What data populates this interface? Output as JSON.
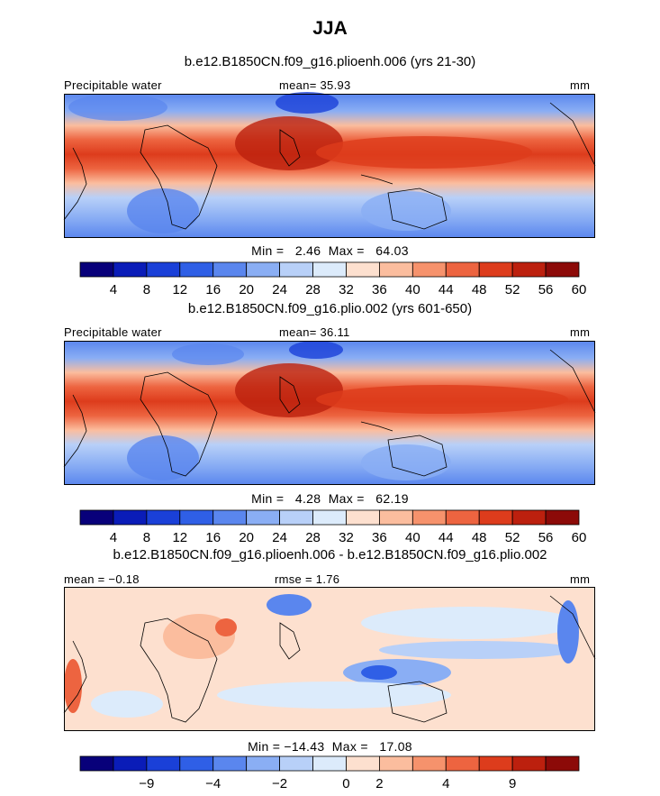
{
  "title": "JJA",
  "panels": [
    {
      "case_title": "b.e12.B1850CN.f09_g16.plioenh.006 (yrs 21-30)",
      "left_label": "Precipitable water",
      "center_label": "mean=  35.93",
      "right_label": "mm",
      "stats": "Min =   2.46  Max =   64.03",
      "colorbar": {
        "colors": [
          "#08007a",
          "#0a1cb8",
          "#1a40d8",
          "#2f5fe6",
          "#5a86ee",
          "#8aaef4",
          "#b8d0f8",
          "#dcebfb",
          "#fde0cf",
          "#fbbd9e",
          "#f6926c",
          "#ed6440",
          "#dd3c1c",
          "#bc200e",
          "#8c0a08"
        ],
        "tick_labels": [
          "4",
          "8",
          "12",
          "16",
          "20",
          "24",
          "28",
          "32",
          "36",
          "40",
          "44",
          "48",
          "52",
          "56",
          "60"
        ]
      }
    },
    {
      "case_title": "b.e12.B1850CN.f09_g16.plio.002 (yrs 601-650)",
      "left_label": "Precipitable water",
      "center_label": "mean=  36.11",
      "right_label": "mm",
      "stats": "Min =   4.28  Max =   62.19",
      "colorbar": {
        "colors": [
          "#08007a",
          "#0a1cb8",
          "#1a40d8",
          "#2f5fe6",
          "#5a86ee",
          "#8aaef4",
          "#b8d0f8",
          "#dcebfb",
          "#fde0cf",
          "#fbbd9e",
          "#f6926c",
          "#ed6440",
          "#dd3c1c",
          "#bc200e",
          "#8c0a08"
        ],
        "tick_labels": [
          "4",
          "8",
          "12",
          "16",
          "20",
          "24",
          "28",
          "32",
          "36",
          "40",
          "44",
          "48",
          "52",
          "56",
          "60"
        ]
      }
    },
    {
      "case_title": "b.e12.B1850CN.f09_g16.plioenh.006 - b.e12.B1850CN.f09_g16.plio.002",
      "left_label": "mean =  −0.18",
      "center_label": "rmse =   1.76",
      "right_label": "mm",
      "stats": "Min = −14.43  Max =   17.08",
      "colorbar": {
        "colors": [
          "#08007a",
          "#0a1cb8",
          "#1a40d8",
          "#2f5fe6",
          "#5a86ee",
          "#8aaef4",
          "#b8d0f8",
          "#dcebfb",
          "#fde0cf",
          "#fbbd9e",
          "#f6926c",
          "#ed6440",
          "#dd3c1c",
          "#bc200e",
          "#8c0a08"
        ],
        "tick_labels": [
          "−9",
          "−4",
          "−2",
          "0",
          "2",
          "4",
          "9"
        ]
      }
    }
  ],
  "chart_data": [
    {
      "type": "heatmap",
      "title": "JJA",
      "subtitle": "b.e12.B1850CN.f09_g16.plioenh.006 (yrs 21-30)",
      "variable": "Precipitable water",
      "units": "mm",
      "mean": 35.93,
      "min": 2.46,
      "max": 64.03,
      "levels": [
        4,
        8,
        12,
        16,
        20,
        24,
        28,
        32,
        36,
        40,
        44,
        48,
        52,
        56,
        60
      ]
    },
    {
      "type": "heatmap",
      "subtitle": "b.e12.B1850CN.f09_g16.plio.002 (yrs 601-650)",
      "variable": "Precipitable water",
      "units": "mm",
      "mean": 36.11,
      "min": 4.28,
      "max": 62.19,
      "levels": [
        4,
        8,
        12,
        16,
        20,
        24,
        28,
        32,
        36,
        40,
        44,
        48,
        52,
        56,
        60
      ]
    },
    {
      "type": "heatmap",
      "subtitle": "b.e12.B1850CN.f09_g16.plioenh.006 - b.e12.B1850CN.f09_g16.plio.002",
      "units": "mm",
      "mean": -0.18,
      "rmse": 1.76,
      "min": -14.43,
      "max": 17.08,
      "levels": [
        -9,
        -4,
        -2,
        0,
        2,
        4,
        9
      ]
    }
  ]
}
